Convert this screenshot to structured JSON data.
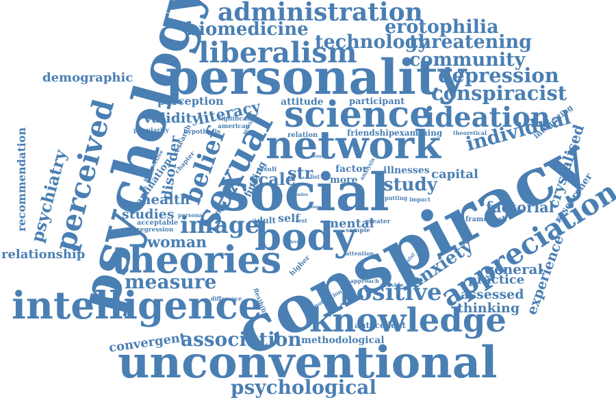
{
  "colors": {
    "text": "#4a7fb3",
    "background": "#ffffff"
  },
  "words": [
    "administration",
    "biomedicine",
    "technology",
    "erotophilia",
    "threatening",
    "liberalism",
    "community",
    "personality",
    "psychology",
    "depression",
    "demographic",
    "conspiracist",
    "perceived",
    "science",
    "ideation",
    "validity",
    "literacy",
    "perception",
    "attitude",
    "participant",
    "significant",
    "american",
    "previous",
    "hypothesis",
    "popularity",
    "research",
    "network",
    "belief",
    "sexual",
    "relation",
    "friendship",
    "examining",
    "theoretical",
    "integrating",
    "individual",
    "crystalised",
    "recommendation",
    "psychiatry",
    "perspective",
    "chapter",
    "disorder",
    "examination",
    "finding",
    "result",
    "str",
    "tension",
    "factor",
    "analysis",
    "illnesses",
    "more",
    "capital",
    "social",
    "conspiracy",
    "scale",
    "study",
    "researcher",
    "health",
    "image",
    "list",
    "self",
    "index",
    "putting",
    "impact",
    "factorial",
    "studies",
    "personal",
    "effect",
    "test",
    "adult",
    "mental",
    "greater",
    "framework",
    "acceptable",
    "regression",
    "woman",
    "body",
    "sample",
    "relationship",
    "anxiety",
    "appreciation",
    "theories",
    "higher",
    "attention",
    "experience",
    "general",
    "stressful",
    "practice",
    "approach",
    "provide",
    "measure",
    "flexibility",
    "difference",
    "motivation",
    "positive",
    "assessed",
    "intelligence",
    "thinking",
    "convergent",
    "knowledge",
    "antecedent",
    "association",
    "methodological",
    "unconventional",
    "psychological",
    "level",
    "range",
    "valid"
  ]
}
